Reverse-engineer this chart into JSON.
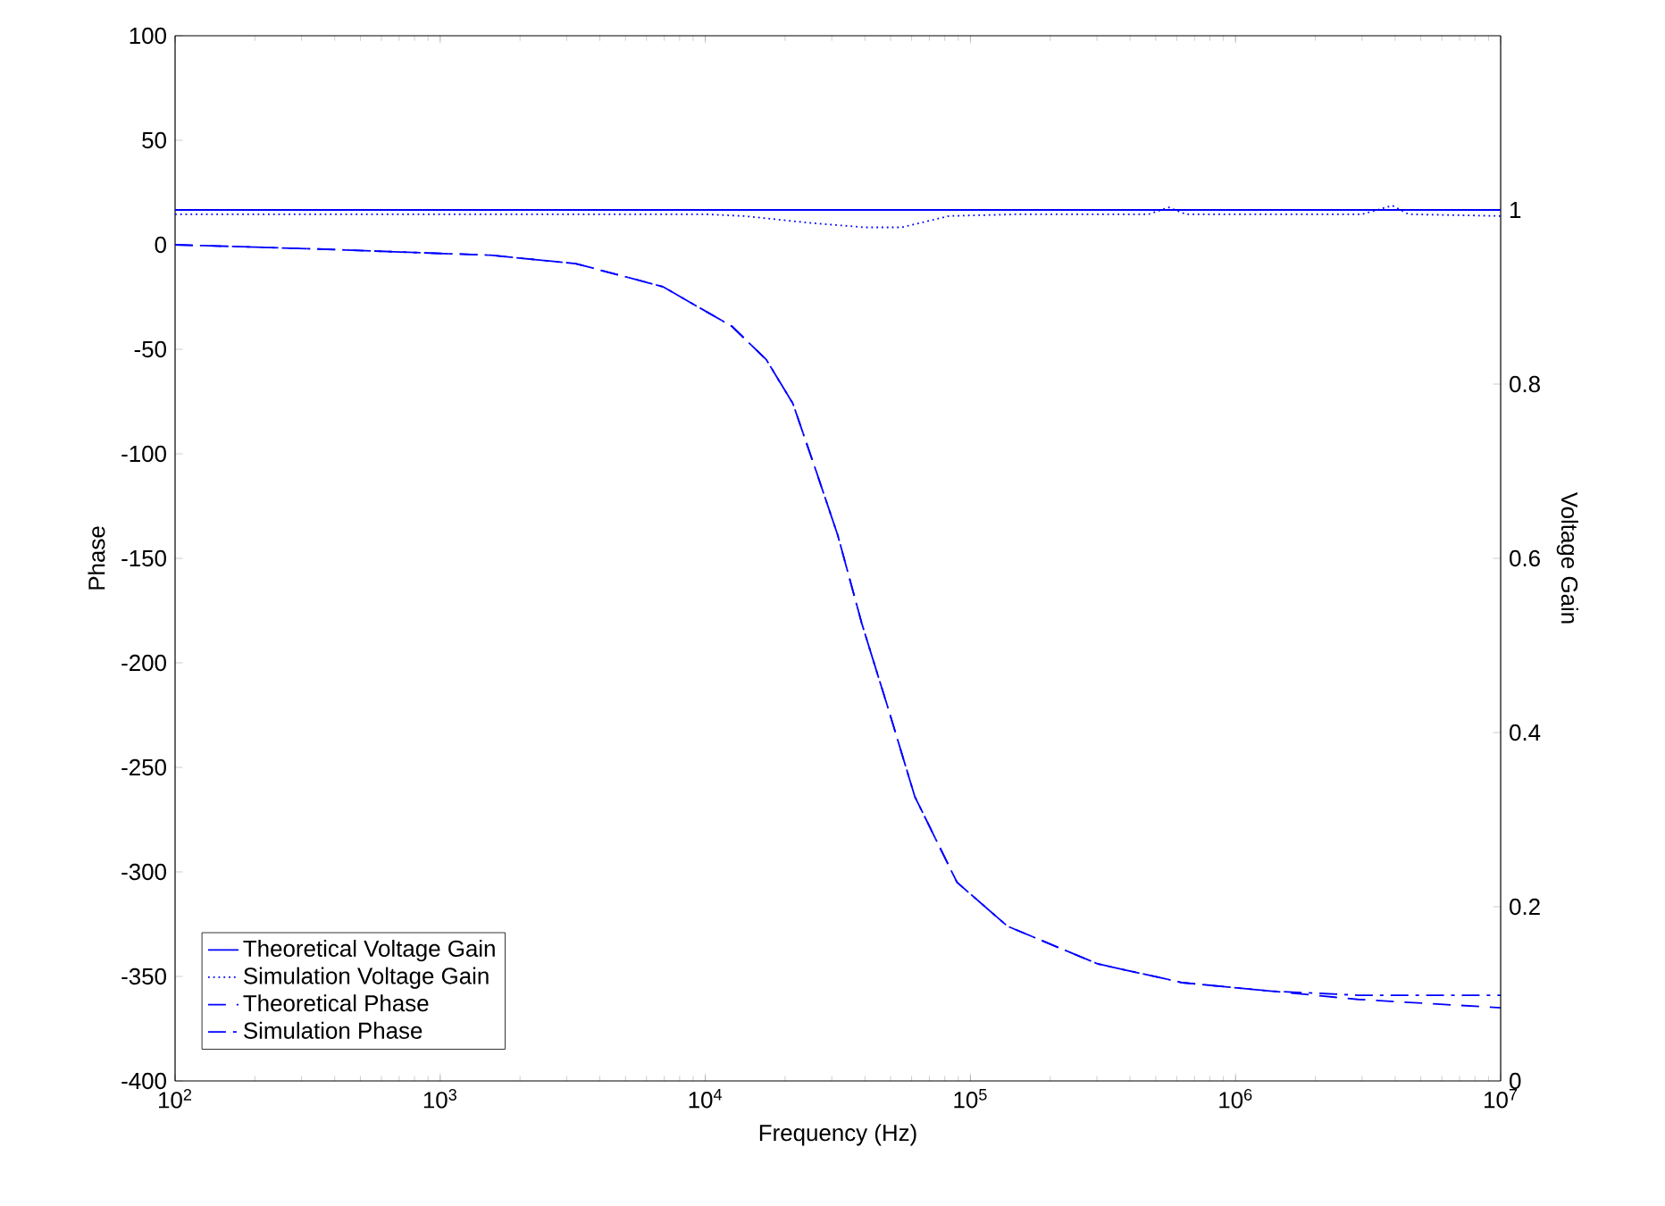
{
  "chart_data": {
    "type": "line",
    "xlabel": "Frequency (Hz)",
    "ylabel": "Phase",
    "y2label": "Voltage Gain",
    "log": "x",
    "legend": "bottom left",
    "xlim": [
      100,
      10000000
    ],
    "ylim": [
      -400,
      100
    ],
    "y2lim": [
      0,
      1.2
    ],
    "xticks": [
      {
        "value": 100,
        "label": "10$^{2}$"
      },
      {
        "value": 1000,
        "label": "10$^{3}$"
      },
      {
        "value": 10000,
        "label": "10$^{4}$"
      },
      {
        "value": 100000,
        "label": "10$^{5}$"
      },
      {
        "value": 1000000,
        "label": "10$^{6}$"
      },
      {
        "value": 10000000,
        "label": "10$^{7}$"
      }
    ],
    "yticks": [
      -400,
      -350,
      -300,
      -250,
      -200,
      -150,
      -100,
      -50,
      0,
      50,
      100
    ],
    "y2ticks": [
      0,
      0.2,
      0.4,
      0.6,
      0.8,
      1
    ],
    "series": [
      {
        "name": "Theoretical Voltage Gain",
        "color": "#0000ff",
        "line_style": "solid",
        "axis": "y2",
        "x": [
          100,
          10000000
        ],
        "values": [
          1,
          1
        ]
      },
      {
        "name": "Simulation Voltage Gain",
        "color": "#0000ff",
        "line_style": "dotted",
        "axis": "y2",
        "x": [
          100,
          10000,
          14000,
          25000,
          40000,
          55000,
          83000,
          150000,
          470000,
          560000,
          650000,
          3000000,
          3900000,
          4500000,
          10000000
        ],
        "values": [
          0.995,
          0.995,
          0.993,
          0.985,
          0.98,
          0.98,
          0.993,
          0.995,
          0.995,
          1.003,
          0.995,
          0.995,
          1.005,
          0.995,
          0.993
        ]
      },
      {
        "name": "Theoretical Phase",
        "color": "#0000ff",
        "line_style": "dashed",
        "x": [
          100,
          340,
          1550,
          3240,
          6900,
          12600,
          17000,
          21400,
          26300,
          31600,
          38900,
          49000,
          61700,
          89000,
          138000,
          302000,
          631000,
          1350000,
          2900000,
          10000000
        ],
        "values": [
          0,
          -2,
          -5,
          -9,
          -20,
          -39,
          -55,
          -76,
          -109,
          -139,
          -181,
          -222,
          -264,
          -305,
          -326,
          -344,
          -353,
          -357,
          -361,
          -365
        ]
      },
      {
        "name": "Simulation Phase",
        "color": "#0000ff",
        "line_style": "dashdot",
        "x": [
          100,
          340,
          1550,
          3240,
          6900,
          12600,
          17000,
          21400,
          26300,
          31600,
          38900,
          49000,
          61700,
          89000,
          138000,
          302000,
          631000,
          1350000,
          2900000,
          10000000
        ],
        "values": [
          0,
          -2,
          -5,
          -9,
          -20,
          -39,
          -55,
          -76,
          -109,
          -139,
          -181,
          -222,
          -264,
          -305,
          -326,
          -344,
          -353,
          -357,
          -359,
          -359
        ]
      }
    ]
  }
}
